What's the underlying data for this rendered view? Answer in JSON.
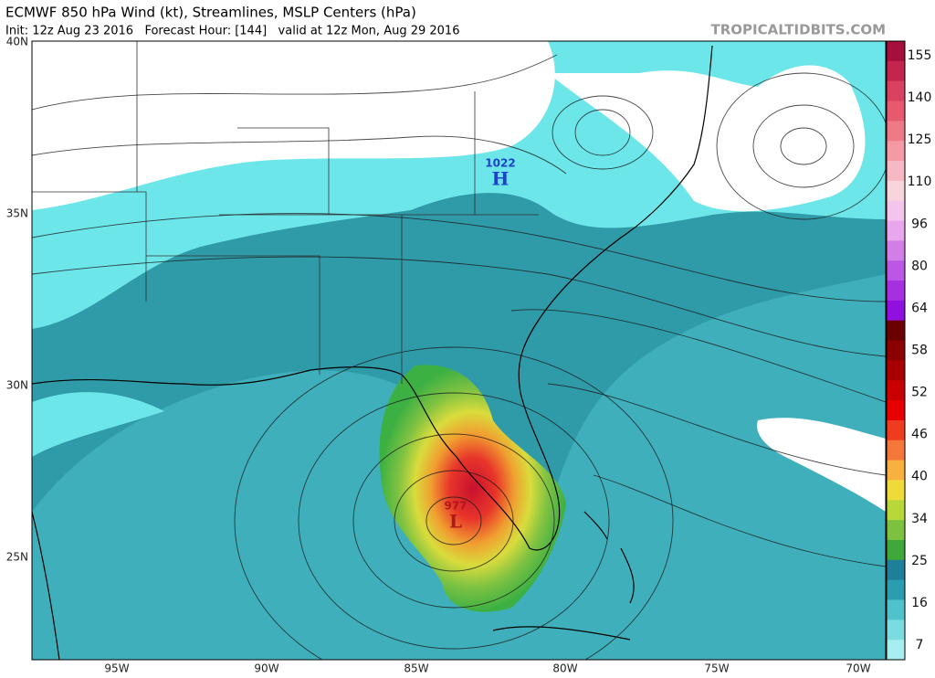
{
  "header": {
    "title": "ECMWF 850 hPa Wind (kt), Streamlines, MSLP Centers (hPa)",
    "subtitle": "Init: 12z Aug 23 2016   Forecast Hour: [144]   valid at 12z Mon, Aug 29 2016",
    "watermark": "TROPICALTIDBITS.COM"
  },
  "map": {
    "lat_labels": [
      "40N",
      "35N",
      "30N",
      "25N"
    ],
    "lon_labels": [
      "95W",
      "90W",
      "85W",
      "80W",
      "75W",
      "70W"
    ],
    "centers": [
      {
        "pressure": 1022,
        "symbol": "H"
      },
      {
        "pressure": 977,
        "symbol": "L"
      }
    ]
  },
  "colorbar": {
    "labels": [
      155,
      140,
      125,
      110,
      96,
      80,
      64,
      58,
      52,
      46,
      40,
      34,
      25,
      16,
      7
    ]
  }
}
